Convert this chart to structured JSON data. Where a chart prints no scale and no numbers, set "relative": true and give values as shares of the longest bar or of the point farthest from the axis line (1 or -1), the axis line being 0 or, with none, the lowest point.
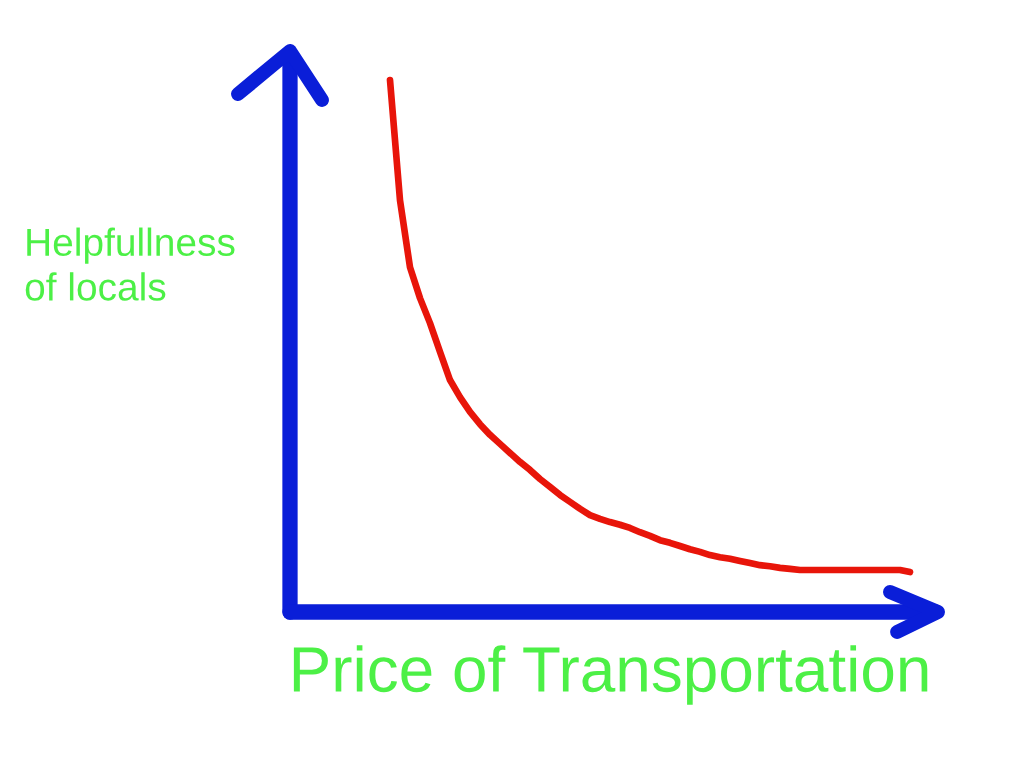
{
  "chart_data": {
    "type": "line",
    "relative": true,
    "xlabel": "Price of Transportation",
    "ylabel": "Helpfullness\nof locals",
    "grid": false,
    "marker": "none",
    "line_style": "solid",
    "categories": [
      null,
      null,
      null,
      null,
      null,
      null,
      null,
      null,
      null,
      null,
      null,
      null,
      null,
      null,
      null,
      null,
      null,
      null,
      null,
      null,
      null,
      null,
      null,
      null,
      null,
      null,
      null,
      null,
      null,
      null,
      null,
      null,
      null,
      null,
      null,
      null,
      null,
      null,
      null,
      null,
      null,
      null,
      null,
      null,
      null,
      null,
      null,
      null,
      null,
      null,
      null,
      null,
      null
    ],
    "series": [
      {
        "color": "#e8150a",
        "values": [
          1.0,
          0.774,
          0.648,
          0.59,
          0.543,
          0.489,
          0.436,
          0.404,
          0.376,
          0.353,
          0.333,
          0.316,
          0.299,
          0.282,
          0.267,
          0.25,
          0.235,
          0.22,
          0.207,
          0.194,
          0.182,
          0.175,
          0.169,
          0.164,
          0.158,
          0.15,
          0.143,
          0.135,
          0.13,
          0.124,
          0.118,
          0.113,
          0.107,
          0.103,
          0.1,
          0.096,
          0.092,
          0.088,
          0.086,
          0.083,
          0.081,
          0.079,
          0.079,
          0.079,
          0.079,
          0.079,
          0.079,
          0.079,
          0.079,
          0.079,
          0.079,
          0.079,
          0.075
        ]
      }
    ]
  }
}
